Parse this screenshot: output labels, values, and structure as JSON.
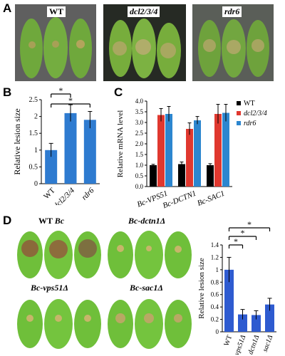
{
  "panels": {
    "A": {
      "letter": "A",
      "photos": [
        {
          "label": "WT",
          "italic": false,
          "bg": "#5f5f5f"
        },
        {
          "label": "dcl2/3/4",
          "italic": true,
          "bg": "#262a24"
        },
        {
          "label": "rdr6",
          "italic": true,
          "bg": "#5a5e58"
        }
      ]
    },
    "B": {
      "letter": "B"
    },
    "C": {
      "letter": "C"
    },
    "D": {
      "letter": "D",
      "photos": [
        {
          "label_strain": "WT ",
          "label_species": "Bc"
        },
        {
          "label_species": "Bc-dctn1Δ"
        },
        {
          "label_species": "Bc-vps51Δ"
        },
        {
          "label_species": "Bc-sac1Δ"
        }
      ]
    }
  },
  "chart_data": [
    {
      "panel": "B",
      "type": "bar",
      "ylabel": "Relative lesion size",
      "ylim": [
        0,
        2.5
      ],
      "yticks": [
        "0",
        "0.5",
        "1",
        "1.5",
        "2",
        "2.5"
      ],
      "categories": [
        "WT",
        "dcl2/3/4",
        "rdr6"
      ],
      "values": [
        1.0,
        2.1,
        1.9
      ],
      "errors": [
        0.2,
        0.25,
        0.25
      ],
      "color": "#2e7bd0",
      "significance": [
        {
          "from": 0,
          "to": 1,
          "label": "*"
        },
        {
          "from": 0,
          "to": 2,
          "label": "*"
        }
      ]
    },
    {
      "panel": "C",
      "type": "bar",
      "ylabel": "Relative mRNA level",
      "ylim": [
        0,
        4.0
      ],
      "yticks": [
        "0.0",
        "0.5",
        "1.0",
        "1.5",
        "2.0",
        "2.5",
        "3.0",
        "3.5",
        "4.0"
      ],
      "categories": [
        "Bc-VPS51",
        "Bc-DCTN1",
        "Bc-SAC1"
      ],
      "series": [
        {
          "name": "WT",
          "color": "#000000",
          "values": [
            1.0,
            1.05,
            1.0
          ],
          "errors": [
            0.04,
            0.1,
            0.07
          ]
        },
        {
          "name": "dcl2/3/4",
          "color": "#e0382f",
          "values": [
            3.35,
            2.7,
            3.4
          ],
          "errors": [
            0.3,
            0.28,
            0.45
          ]
        },
        {
          "name": "rdr6",
          "color": "#2c86cf",
          "values": [
            3.4,
            3.1,
            3.45
          ],
          "errors": [
            0.35,
            0.18,
            0.4
          ]
        }
      ],
      "legend": "top-right"
    },
    {
      "panel": "D",
      "type": "bar",
      "ylabel": "Relative lesion size",
      "ylim": [
        0,
        1.4
      ],
      "yticks": [
        "0",
        "0.2",
        "0.4",
        "0.6",
        "0.8",
        "1",
        "1.2",
        "1.4"
      ],
      "categories": [
        "WT",
        "vps51Δ",
        "dctn1Δ",
        "sac1Δ"
      ],
      "values": [
        1.0,
        0.28,
        0.27,
        0.44
      ],
      "errors": [
        0.2,
        0.08,
        0.07,
        0.1
      ],
      "color": "#2e5bd0",
      "significance": [
        {
          "from": 0,
          "to": 1,
          "label": "*"
        },
        {
          "from": 0,
          "to": 2,
          "label": "*"
        },
        {
          "from": 0,
          "to": 3,
          "label": "*"
        }
      ]
    }
  ]
}
